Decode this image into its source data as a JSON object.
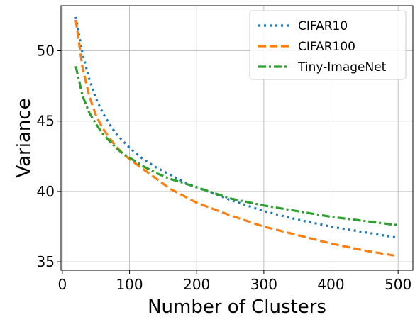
{
  "chart_data": {
    "type": "line",
    "xlabel": "Number of Clusters",
    "ylabel": "Variance",
    "xlim": [
      -2,
      522
    ],
    "ylim": [
      34.4,
      53.2
    ],
    "xticks": [
      0,
      100,
      200,
      300,
      400,
      500
    ],
    "yticks": [
      35,
      40,
      45,
      50
    ],
    "grid": true,
    "legend_position": "top-right",
    "series": [
      {
        "name": "CIFAR10",
        "color": "#1f77b4",
        "linestyle": "dotted",
        "x": [
          20,
          30,
          40,
          50,
          60,
          70,
          80,
          90,
          100,
          120,
          140,
          160,
          180,
          200,
          250,
          300,
          350,
          400,
          450,
          500
        ],
        "y": [
          52.4,
          49.8,
          48.0,
          46.6,
          45.6,
          44.8,
          44.1,
          43.6,
          43.1,
          42.3,
          41.7,
          41.2,
          40.7,
          40.3,
          39.4,
          38.6,
          38.0,
          37.5,
          37.1,
          36.7
        ]
      },
      {
        "name": "CIFAR100",
        "color": "#ff7f0e",
        "linestyle": "dashed",
        "x": [
          20,
          30,
          40,
          50,
          60,
          70,
          80,
          90,
          100,
          120,
          140,
          160,
          180,
          200,
          250,
          300,
          350,
          400,
          450,
          500
        ],
        "y": [
          52.2,
          48.8,
          46.8,
          45.4,
          44.5,
          43.8,
          43.2,
          42.7,
          42.3,
          41.6,
          40.9,
          40.2,
          39.7,
          39.2,
          38.3,
          37.5,
          36.9,
          36.3,
          35.8,
          35.4
        ]
      },
      {
        "name": "Tiny-ImageNet",
        "color": "#2ca02c",
        "linestyle": "dashdot",
        "x": [
          20,
          30,
          40,
          50,
          60,
          70,
          80,
          90,
          100,
          120,
          140,
          160,
          180,
          200,
          250,
          300,
          350,
          400,
          450,
          500
        ],
        "y": [
          48.9,
          46.8,
          45.6,
          44.8,
          44.1,
          43.6,
          43.1,
          42.7,
          42.4,
          41.8,
          41.3,
          40.9,
          40.6,
          40.3,
          39.5,
          39.0,
          38.6,
          38.2,
          37.9,
          37.6
        ]
      }
    ]
  }
}
